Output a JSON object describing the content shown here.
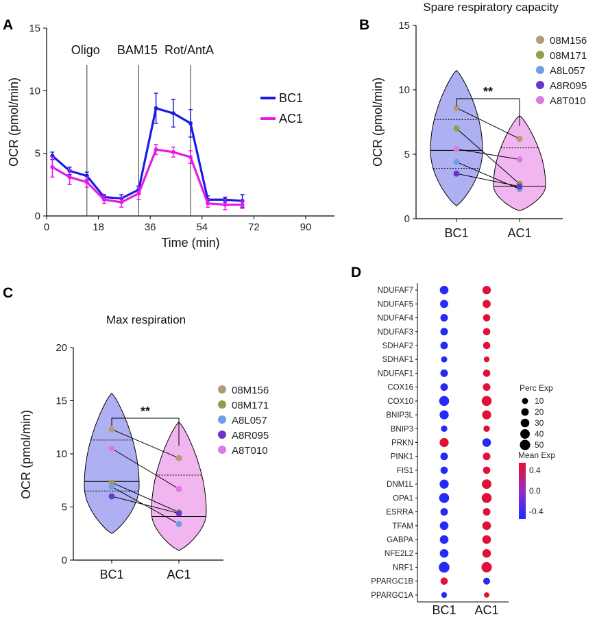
{
  "panel_labels": [
    "A",
    "B",
    "C",
    "D"
  ],
  "colors": {
    "BC1": "#1a1ae6",
    "AC1": "#e619e6",
    "violin_BC1": "#aeb0f2",
    "violin_AC1": "#f1b6f0",
    "donors": [
      "#b39a7a",
      "#8fa04a",
      "#6f9fe0",
      "#6a36c8",
      "#d97be0"
    ]
  },
  "chart_data": [
    {
      "type": "line",
      "panel": "A",
      "title": "",
      "xlabel": "Time (min)",
      "ylabel": "OCR (pmol/min)",
      "xlim": [
        0,
        100
      ],
      "ylim": [
        0,
        15
      ],
      "xticks": [
        0,
        18,
        36,
        54,
        72,
        90
      ],
      "yticks": [
        0,
        5,
        10,
        15
      ],
      "annotations": [
        {
          "x": 14,
          "label": "Oligo"
        },
        {
          "x": 32,
          "label": "BAM15"
        },
        {
          "x": 50,
          "label": "Rot/AntA"
        }
      ],
      "legend_position": "right",
      "x": [
        2,
        8,
        14,
        20,
        26,
        32,
        38,
        44,
        50,
        56,
        62,
        68
      ],
      "series": [
        {
          "name": "BC1",
          "values": [
            4.8,
            3.6,
            3.2,
            1.5,
            1.4,
            2.1,
            8.6,
            8.2,
            7.4,
            1.3,
            1.3,
            1.2
          ],
          "errors": [
            0.3,
            0.3,
            0.3,
            0.2,
            0.3,
            0.3,
            1.2,
            1.1,
            1.1,
            0.3,
            0.2,
            0.5
          ]
        },
        {
          "name": "AC1",
          "values": [
            3.9,
            3.1,
            2.7,
            1.3,
            1.1,
            1.8,
            5.3,
            5.1,
            4.7,
            1.0,
            0.9,
            0.9
          ],
          "errors": [
            0.8,
            0.6,
            0.4,
            0.3,
            0.4,
            0.5,
            0.4,
            0.4,
            0.5,
            0.3,
            0.4,
            0.3
          ]
        }
      ]
    },
    {
      "type": "violin",
      "panel": "B",
      "title": "Spare respiratory capacity",
      "xlabel": "",
      "ylabel": "OCR (pmol/min)",
      "ylim": [
        0,
        15
      ],
      "yticks": [
        0,
        5,
        10,
        15
      ],
      "categories": [
        "BC1",
        "AC1"
      ],
      "significance": "**",
      "legend_position": "right",
      "donors": [
        "08M156",
        "08M171",
        "A8L057",
        "A8R095",
        "A8T010"
      ],
      "series": [
        {
          "name": "08M156",
          "values": [
            8.6,
            6.2
          ]
        },
        {
          "name": "08M171",
          "values": [
            7.0,
            2.7
          ]
        },
        {
          "name": "A8L057",
          "values": [
            4.4,
            2.3
          ]
        },
        {
          "name": "A8R095",
          "values": [
            3.5,
            2.5
          ]
        },
        {
          "name": "A8T010",
          "values": [
            5.4,
            4.6
          ]
        }
      ],
      "violin": {
        "BC1": {
          "min": 1.0,
          "max": 11.5,
          "median": 5.3,
          "q1": 3.9,
          "q3": 7.7,
          "center": 5.3
        },
        "AC1": {
          "min": 0.6,
          "max": 8.0,
          "median": 2.5,
          "q1": 2.5,
          "q3": 5.5,
          "center": 2.6
        }
      }
    },
    {
      "type": "violin",
      "panel": "C",
      "title": "Max respiration",
      "xlabel": "",
      "ylabel": "OCR (pmol/min)",
      "ylim": [
        0,
        20
      ],
      "yticks": [
        0,
        5,
        10,
        15,
        20
      ],
      "categories": [
        "BC1",
        "AC1"
      ],
      "significance": "**",
      "legend_position": "right",
      "donors": [
        "08M156",
        "08M171",
        "A8L057",
        "A8R095",
        "A8T010"
      ],
      "series": [
        {
          "name": "08M156",
          "values": [
            12.3,
            9.6
          ]
        },
        {
          "name": "08M171",
          "values": [
            7.3,
            4.5
          ]
        },
        {
          "name": "A8L057",
          "values": [
            6.9,
            3.4
          ]
        },
        {
          "name": "A8R095",
          "values": [
            6.0,
            4.4
          ]
        },
        {
          "name": "A8T010",
          "values": [
            10.5,
            6.7
          ]
        }
      ],
      "violin": {
        "BC1": {
          "min": 2.5,
          "max": 15.7,
          "median": 7.4,
          "q1": 6.5,
          "q3": 11.3,
          "center": 7.0
        },
        "AC1": {
          "min": 0.9,
          "max": 13.0,
          "median": 4.1,
          "q1": 4.1,
          "q3": 8.0,
          "center": 4.5
        }
      }
    },
    {
      "type": "dot",
      "panel": "D",
      "title": "",
      "xlabel": "",
      "ylabel": "",
      "categories": [
        "BC1",
        "AC1"
      ],
      "genes": [
        "NDUFAF7",
        "NDUFAF5",
        "NDUFAF4",
        "NDUFAF3",
        "SDHAF2",
        "SDHAF1",
        "NDUFAF1",
        "COX16",
        "COX10",
        "BNIP3L",
        "BNIP3",
        "PRKN",
        "PINK1",
        "FIS1",
        "DNM1L",
        "OPA1",
        "ESRRA",
        "TFAM",
        "GABPA",
        "NFE2L2",
        "NRF1",
        "PPARGC1B",
        "PPARGC1A"
      ],
      "perc_exp": {
        "BC1": [
          30,
          25,
          20,
          20,
          20,
          10,
          20,
          20,
          45,
          35,
          12,
          35,
          20,
          18,
          35,
          45,
          20,
          30,
          30,
          30,
          55,
          18,
          8
        ],
        "AC1": [
          28,
          25,
          18,
          18,
          18,
          8,
          18,
          20,
          45,
          35,
          12,
          30,
          20,
          18,
          40,
          45,
          20,
          30,
          30,
          30,
          50,
          15,
          6
        ]
      },
      "mean_exp": {
        "BC1": [
          -0.5,
          -0.5,
          -0.5,
          -0.5,
          -0.5,
          -0.5,
          -0.5,
          -0.5,
          -0.5,
          -0.5,
          -0.5,
          0.5,
          -0.5,
          -0.5,
          -0.5,
          -0.5,
          -0.5,
          -0.5,
          -0.5,
          -0.5,
          -0.5,
          0.5,
          -0.5
        ],
        "AC1": [
          0.5,
          0.5,
          0.5,
          0.5,
          0.5,
          0.5,
          0.5,
          0.5,
          0.5,
          0.5,
          0.5,
          -0.5,
          0.5,
          0.5,
          0.5,
          0.5,
          0.5,
          0.5,
          0.5,
          0.5,
          0.5,
          -0.5,
          0.5
        ]
      },
      "size_legend": {
        "title": "Perc Exp",
        "values": [
          10,
          20,
          30,
          40,
          50
        ]
      },
      "color_legend": {
        "title": "Mean Exp",
        "ticks": [
          0.4,
          0.0,
          -0.4
        ],
        "tick_labels": [
          "0.4",
          "0.0",
          "-0.4"
        ],
        "range": [
          -0.55,
          0.55
        ]
      }
    }
  ]
}
